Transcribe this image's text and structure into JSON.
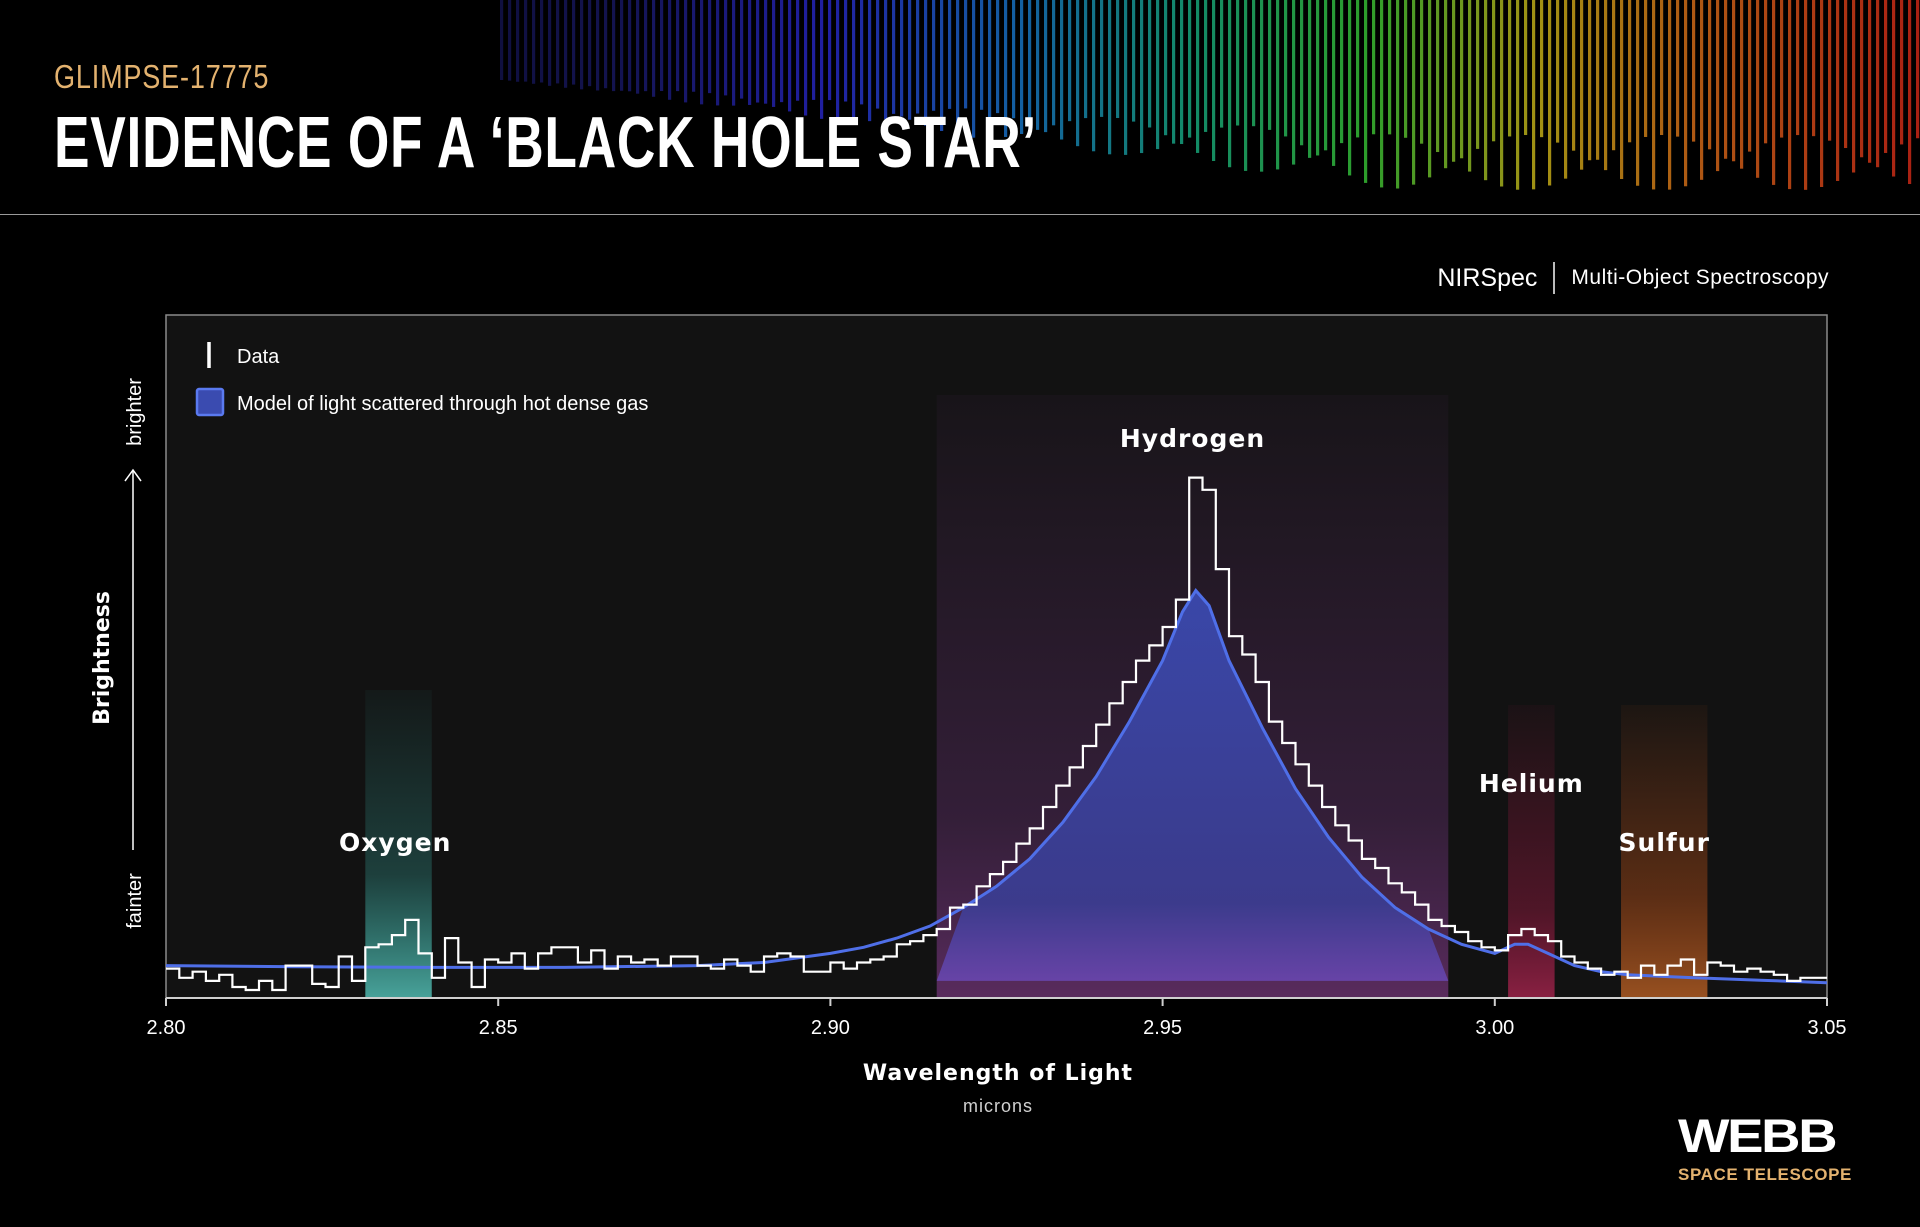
{
  "header": {
    "subtitle": "GLIMPSE-17775",
    "title": "EVIDENCE OF A ‘BLACK HOLE STAR’"
  },
  "instrument": {
    "name": "NIRSpec",
    "mode": "Multi-Object Spectroscopy"
  },
  "colors": {
    "data_line": "#ffffff",
    "model_line": "#4f6fe8",
    "model_fill": "#3a4bb0",
    "oxygen_band": "#3fc7bb",
    "hydrogen_band": "#8a3f9a",
    "helium_band": "#c01c4f",
    "sulfur_band": "#e2601a",
    "accent": "#e3b26f"
  },
  "chart_data": {
    "type": "line",
    "title": "",
    "xlabel": "Wavelength of Light",
    "xunit": "microns",
    "ylabel": "Brightness",
    "ylabel_low": "fainter",
    "ylabel_high": "brighter",
    "xlim": [
      2.8,
      3.05
    ],
    "ylim": [
      0,
      1
    ],
    "x_ticks": [
      "2.80",
      "2.85",
      "2.90",
      "2.95",
      "3.00",
      "3.05"
    ],
    "grid": false,
    "legend_position": "top-left",
    "legend": [
      "Data",
      "Model of light scattered through hot dense gas"
    ],
    "annotations": [
      {
        "label": "Oxygen",
        "band": [
          2.83,
          2.84
        ],
        "label_x": 2.8345,
        "label_y": 0.228
      },
      {
        "label": "Hydrogen",
        "band": [
          2.916,
          2.993
        ],
        "label_x": 2.9545,
        "label_y": 0.89
      },
      {
        "label": "Helium",
        "band": [
          3.002,
          3.009
        ],
        "label_x": 3.0055,
        "label_y": 0.325
      },
      {
        "label": "Sulfur",
        "band": [
          3.019,
          3.032
        ],
        "label_x": 3.0255,
        "label_y": 0.228
      }
    ],
    "series": [
      {
        "name": "Data",
        "kind": "step",
        "x": [
          2.8,
          2.802,
          2.804,
          2.806,
          2.808,
          2.81,
          2.812,
          2.814,
          2.816,
          2.818,
          2.82,
          2.822,
          2.824,
          2.826,
          2.828,
          2.83,
          2.832,
          2.834,
          2.836,
          2.838,
          2.84,
          2.842,
          2.844,
          2.846,
          2.848,
          2.85,
          2.852,
          2.854,
          2.856,
          2.858,
          2.86,
          2.862,
          2.864,
          2.866,
          2.868,
          2.87,
          2.872,
          2.874,
          2.876,
          2.878,
          2.88,
          2.882,
          2.884,
          2.886,
          2.888,
          2.89,
          2.892,
          2.894,
          2.896,
          2.898,
          2.9,
          2.902,
          2.904,
          2.906,
          2.908,
          2.91,
          2.912,
          2.914,
          2.916,
          2.918,
          2.92,
          2.922,
          2.924,
          2.926,
          2.928,
          2.93,
          2.932,
          2.934,
          2.936,
          2.938,
          2.94,
          2.942,
          2.944,
          2.946,
          2.948,
          2.95,
          2.952,
          2.954,
          2.956,
          2.958,
          2.96,
          2.962,
          2.964,
          2.966,
          2.968,
          2.97,
          2.972,
          2.974,
          2.976,
          2.978,
          2.98,
          2.982,
          2.984,
          2.986,
          2.988,
          2.99,
          2.992,
          2.994,
          2.996,
          2.998,
          3.0,
          3.002,
          3.004,
          3.006,
          3.008,
          3.01,
          3.012,
          3.014,
          3.016,
          3.018,
          3.02,
          3.022,
          3.024,
          3.026,
          3.028,
          3.03,
          3.032,
          3.034,
          3.036,
          3.038,
          3.04,
          3.042,
          3.044,
          3.046,
          3.048
        ],
        "y": [
          0.035,
          0.02,
          0.03,
          0.015,
          0.025,
          0.005,
          0.0,
          0.015,
          0.0,
          0.04,
          0.04,
          0.01,
          0.005,
          0.055,
          0.015,
          0.07,
          0.075,
          0.09,
          0.115,
          0.06,
          0.02,
          0.085,
          0.045,
          0.005,
          0.05,
          0.045,
          0.06,
          0.035,
          0.06,
          0.07,
          0.07,
          0.045,
          0.065,
          0.035,
          0.055,
          0.045,
          0.05,
          0.04,
          0.055,
          0.055,
          0.04,
          0.035,
          0.05,
          0.04,
          0.03,
          0.055,
          0.06,
          0.055,
          0.03,
          0.03,
          0.045,
          0.035,
          0.045,
          0.05,
          0.055,
          0.075,
          0.08,
          0.09,
          0.1,
          0.135,
          0.14,
          0.17,
          0.19,
          0.21,
          0.24,
          0.265,
          0.3,
          0.335,
          0.365,
          0.4,
          0.435,
          0.47,
          0.505,
          0.54,
          0.565,
          0.595,
          0.64,
          0.84,
          0.82,
          0.69,
          0.58,
          0.55,
          0.505,
          0.44,
          0.405,
          0.37,
          0.335,
          0.3,
          0.27,
          0.245,
          0.215,
          0.2,
          0.175,
          0.16,
          0.14,
          0.115,
          0.105,
          0.095,
          0.08,
          0.07,
          0.065,
          0.09,
          0.1,
          0.09,
          0.08,
          0.055,
          0.045,
          0.035,
          0.025,
          0.03,
          0.02,
          0.04,
          0.025,
          0.04,
          0.05,
          0.025,
          0.045,
          0.04,
          0.03,
          0.035,
          0.03,
          0.025,
          0.015,
          0.02,
          0.02
        ]
      },
      {
        "name": "Model of light scattered through hot dense gas",
        "kind": "curve",
        "x": [
          2.8,
          2.82,
          2.84,
          2.86,
          2.88,
          2.89,
          2.9,
          2.905,
          2.91,
          2.915,
          2.92,
          2.925,
          2.93,
          2.935,
          2.94,
          2.945,
          2.95,
          2.953,
          2.955,
          2.957,
          2.96,
          2.965,
          2.97,
          2.975,
          2.98,
          2.985,
          2.99,
          2.995,
          3.0,
          3.003,
          3.005,
          3.008,
          3.012,
          3.016,
          3.02,
          3.03,
          3.04,
          3.05
        ],
        "y": [
          0.04,
          0.038,
          0.037,
          0.037,
          0.04,
          0.045,
          0.06,
          0.07,
          0.085,
          0.105,
          0.135,
          0.17,
          0.215,
          0.275,
          0.35,
          0.44,
          0.54,
          0.62,
          0.655,
          0.63,
          0.54,
          0.43,
          0.33,
          0.25,
          0.185,
          0.135,
          0.1,
          0.075,
          0.06,
          0.075,
          0.075,
          0.06,
          0.04,
          0.03,
          0.025,
          0.02,
          0.016,
          0.012
        ]
      }
    ]
  }
}
